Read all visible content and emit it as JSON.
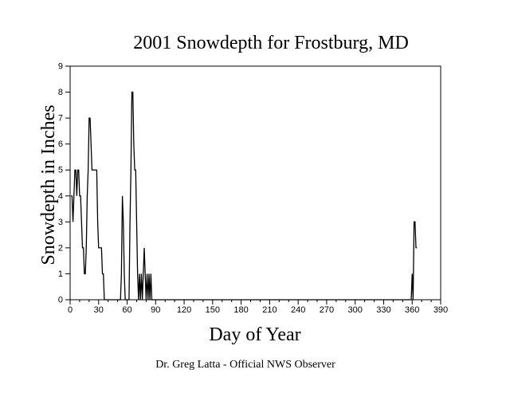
{
  "chart_data": {
    "type": "line",
    "title": "2001 Snowdepth for Frostburg, MD",
    "xlabel": "Day of Year",
    "ylabel": "Snowdepth in Inches",
    "xlim": [
      0,
      390
    ],
    "ylim": [
      0,
      9
    ],
    "xticks": [
      0,
      30,
      60,
      90,
      120,
      150,
      180,
      210,
      240,
      270,
      300,
      330,
      360,
      390
    ],
    "yticks": [
      0,
      1,
      2,
      3,
      4,
      5,
      6,
      7,
      8,
      9
    ],
    "grid": false,
    "legend": "none",
    "line_color": "#000000",
    "series": [
      {
        "x": [
          1,
          2,
          3,
          4,
          5,
          6,
          7,
          8,
          9,
          10,
          11,
          12,
          13,
          14,
          15,
          16,
          17,
          18,
          19,
          20,
          21,
          22,
          23,
          24,
          25,
          26,
          27,
          28,
          29,
          30,
          31,
          32,
          33,
          34,
          35,
          36,
          37,
          38,
          39,
          40,
          41,
          42,
          50,
          53,
          54,
          55,
          56,
          57,
          58,
          60,
          62,
          63,
          64,
          65,
          66,
          67,
          68,
          69,
          70,
          71,
          72,
          73,
          74,
          75,
          76,
          77,
          78,
          79,
          80,
          81,
          82,
          83,
          84,
          85,
          86,
          87,
          88,
          100,
          200,
          300,
          355,
          357,
          358,
          359,
          360,
          361,
          362,
          363,
          364,
          365
        ],
        "y": [
          4,
          4,
          3,
          4,
          5,
          5,
          4,
          5,
          5,
          4,
          4,
          3,
          2,
          2,
          1,
          1,
          2,
          4,
          5,
          7,
          7,
          6,
          5,
          5,
          5,
          5,
          5,
          5,
          3,
          2,
          2,
          2,
          2,
          1,
          1,
          0,
          0,
          0,
          0,
          0,
          0,
          0,
          0,
          0,
          1,
          4,
          3,
          1,
          0,
          0,
          0,
          3,
          5,
          8,
          8,
          6,
          5,
          5,
          3,
          1,
          0,
          1,
          0,
          1,
          0,
          1,
          2,
          1,
          0,
          1,
          0,
          1,
          0,
          1,
          0,
          0,
          0,
          0,
          0,
          0,
          0,
          0,
          0,
          0,
          1,
          0,
          3,
          3,
          2,
          2
        ]
      }
    ]
  },
  "footer": {
    "credit": "Dr. Greg Latta - Official NWS Observer"
  }
}
